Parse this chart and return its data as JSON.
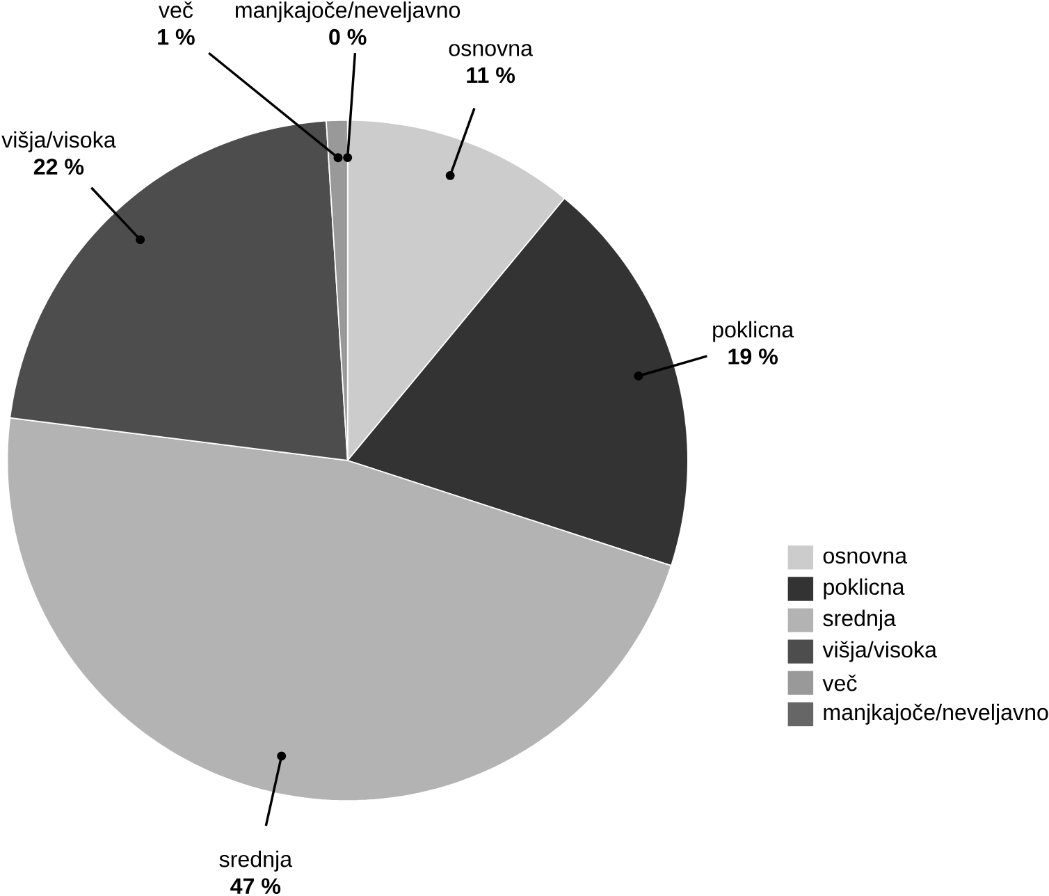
{
  "chart_data": {
    "type": "pie",
    "categories": [
      "osnovna",
      "poklicna",
      "srednja",
      "višja/visoka",
      "več",
      "manjkajoče/neveljavno"
    ],
    "values": [
      11,
      19,
      47,
      22,
      1,
      0
    ],
    "value_labels": [
      "11 %",
      "19 %",
      "47 %",
      "22 %",
      "1 %",
      "0 %"
    ],
    "colors": [
      "#cccccc",
      "#333333",
      "#b3b3b3",
      "#4d4d4d",
      "#999999",
      "#666666"
    ],
    "legend": "bottom right"
  }
}
